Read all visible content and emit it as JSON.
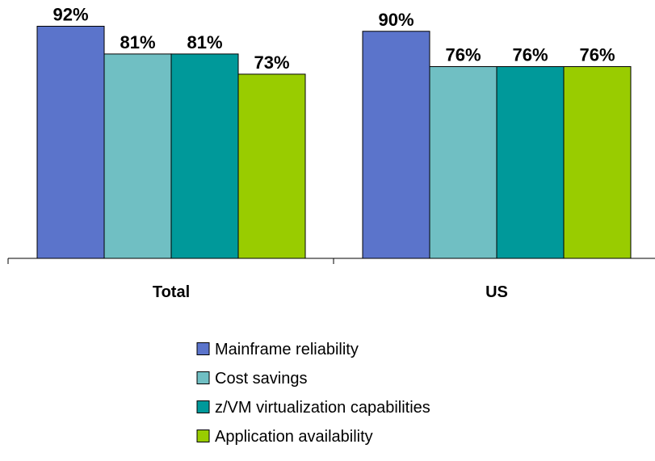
{
  "chart_data": {
    "type": "bar",
    "categories": [
      "Total",
      "US"
    ],
    "series": [
      {
        "name": "Mainframe reliability",
        "values": [
          92,
          90
        ],
        "color": "#5b74cb"
      },
      {
        "name": "Cost savings",
        "values": [
          81,
          76
        ],
        "color": "#70bfc3"
      },
      {
        "name": "z/VM virtualization capabilities",
        "values": [
          81,
          76
        ],
        "color": "#00999a"
      },
      {
        "name": "Application availability",
        "values": [
          73,
          76
        ],
        "color": "#99cc00"
      }
    ],
    "value_suffix": "%",
    "title": "",
    "xlabel": "",
    "ylabel": "",
    "ylim": [
      0,
      100
    ],
    "grid": false,
    "legend_position": "bottom"
  }
}
